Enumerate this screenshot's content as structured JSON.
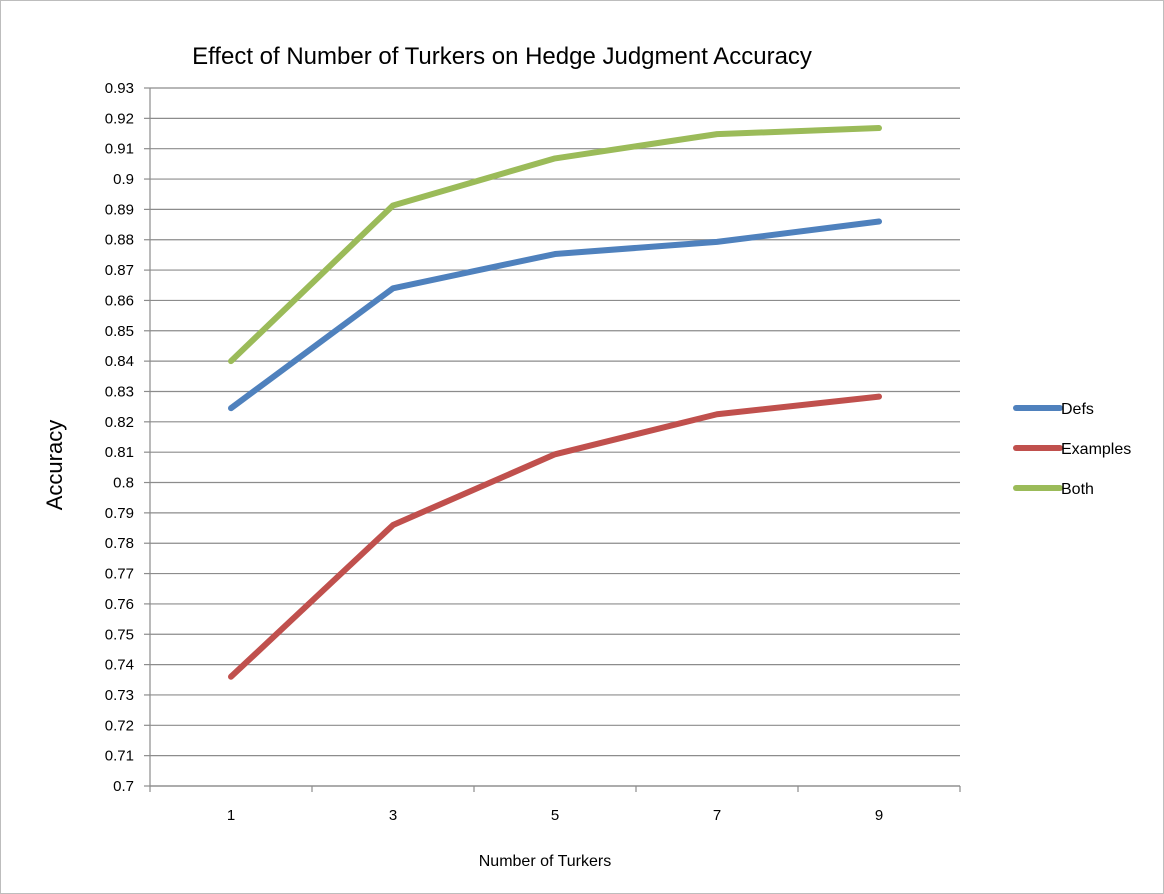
{
  "chart_data": {
    "type": "line",
    "title": "Effect of Number of Turkers on Hedge Judgment Accuracy",
    "xlabel": "Number of Turkers",
    "ylabel": "Accuracy",
    "categories": [
      "1",
      "3",
      "5",
      "7",
      "9"
    ],
    "ylim": [
      0.7,
      0.93
    ],
    "ytick_step": 0.01,
    "yticks": [
      "0.7",
      "0.71",
      "0.72",
      "0.73",
      "0.74",
      "0.75",
      "0.76",
      "0.77",
      "0.78",
      "0.79",
      "0.8",
      "0.81",
      "0.82",
      "0.83",
      "0.84",
      "0.85",
      "0.86",
      "0.87",
      "0.88",
      "0.89",
      "0.9",
      "0.91",
      "0.92",
      "0.93"
    ],
    "grid": true,
    "legend_position": "right",
    "series": [
      {
        "name": "Defs",
        "color": "#4f81bd",
        "values": [
          0.8245,
          0.864,
          0.8753,
          0.8793,
          0.886
        ]
      },
      {
        "name": "Examples",
        "color": "#c0504d",
        "values": [
          0.736,
          0.786,
          0.8093,
          0.8225,
          0.8283
        ]
      },
      {
        "name": "Both",
        "color": "#9bbb59",
        "values": [
          0.84,
          0.8913,
          0.9068,
          0.9148,
          0.9168
        ]
      }
    ]
  }
}
